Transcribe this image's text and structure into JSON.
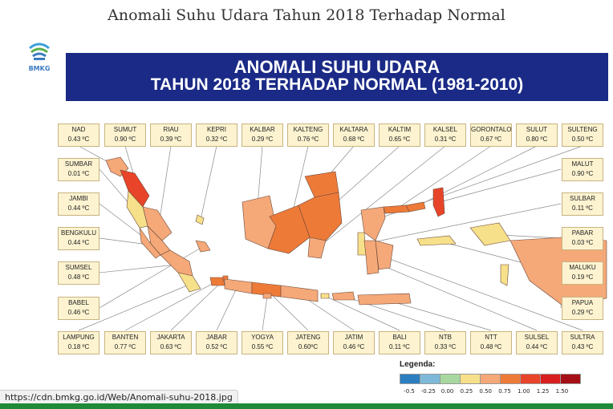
{
  "page_title": "Anomali Suhu Udara Tahun 2018 Terhadap Normal",
  "logo_text": "BMKG",
  "banner": {
    "line1": "ANOMALI SUHU UDARA",
    "line2": "TAHUN 2018 TERHADAP NORMAL (1981-2010)"
  },
  "regions": [
    {
      "name": "NAD",
      "value": "0.43 ºC"
    },
    {
      "name": "SUMUT",
      "value": "0.90 ºC"
    },
    {
      "name": "RIAU",
      "value": "0.39 ºC"
    },
    {
      "name": "KEPRI",
      "value": "0.32 ºC"
    },
    {
      "name": "KALBAR",
      "value": "0.29 ºC"
    },
    {
      "name": "KALTENG",
      "value": "0.76 ºC"
    },
    {
      "name": "KALTARA",
      "value": "0.68 ºC"
    },
    {
      "name": "KALTIM",
      "value": "0.65 ºC"
    },
    {
      "name": "KALSEL",
      "value": "0.31 ºC"
    },
    {
      "name": "GORONTALO",
      "value": "0.67 ºC"
    },
    {
      "name": "SULUT",
      "value": "0.80 ºC"
    },
    {
      "name": "SULTENG",
      "value": "0.50 ºC"
    },
    {
      "name": "SUMBAR",
      "value": "0.01 ºC"
    },
    {
      "name": "JAMBI",
      "value": "0.44 ºC"
    },
    {
      "name": "BENGKULU",
      "value": "0.44 ºC"
    },
    {
      "name": "SUMSEL",
      "value": "0.48 ºC"
    },
    {
      "name": "BABEL",
      "value": "0.46 ºC"
    },
    {
      "name": "MALUT",
      "value": "0.90 ºC"
    },
    {
      "name": "SULBAR",
      "value": "0.11 ºC"
    },
    {
      "name": "PABAR",
      "value": "0.03 ºC"
    },
    {
      "name": "MALUKU",
      "value": "0.19 ºC"
    },
    {
      "name": "PAPUA",
      "value": "0.29 ºC"
    },
    {
      "name": "LAMPUNG",
      "value": "0.18 ºC"
    },
    {
      "name": "BANTEN",
      "value": "0.77 ºC"
    },
    {
      "name": "JAKARTA",
      "value": "0.63 ºC"
    },
    {
      "name": "JABAR",
      "value": "0.52 ºC"
    },
    {
      "name": "YOGYA",
      "value": "0.55 ºC"
    },
    {
      "name": "JATENG",
      "value": "0.60ºC"
    },
    {
      "name": "JATIM",
      "value": "0.46 ºC"
    },
    {
      "name": "BALI",
      "value": "0.11 ºC"
    },
    {
      "name": "NTB",
      "value": "0.33 ºC"
    },
    {
      "name": "NTT",
      "value": "0.48 ºC"
    },
    {
      "name": "SULSEL",
      "value": "0.44 ºC"
    },
    {
      "name": "SULTRA",
      "value": "0.43 ºC"
    }
  ],
  "legend": {
    "title": "Legenda:",
    "ticks": [
      "-0.5",
      "-0.25",
      "0.00",
      "0.25",
      "0.50",
      "0.75",
      "1.00",
      "1.25",
      "1.50"
    ],
    "colors": [
      "#2b7ec0",
      "#7db9d8",
      "#a8d8a0",
      "#f7e08a",
      "#f5a878",
      "#ee7a38",
      "#e8442a",
      "#d81e1e",
      "#a50f15"
    ]
  },
  "status_url": "https://cdn.bmkg.go.id/Web/Anomali-suhu-2018.jpg"
}
